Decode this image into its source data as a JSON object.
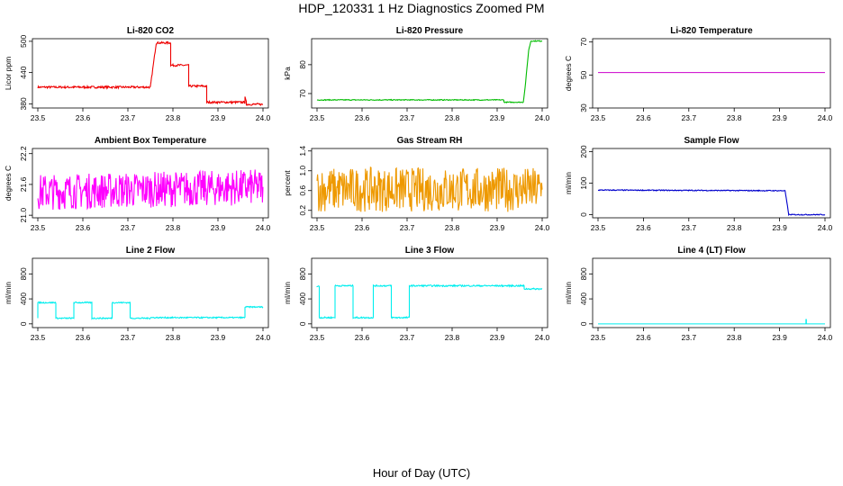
{
  "figure": {
    "title": "HDP_120331  1 Hz Diagnostics Zoomed PM",
    "xlabel": "Hour of Day (UTC)"
  },
  "chart_data": [
    {
      "type": "line",
      "title": "Li-820 CO2",
      "ylabel": "Licor ppm",
      "color": "#ee0000",
      "xlim": [
        23.5,
        24.0
      ],
      "ylim": [
        372,
        505
      ],
      "xticks": [
        "23.5",
        "23.6",
        "23.7",
        "23.8",
        "23.9",
        "24.0"
      ],
      "yticks": [
        380,
        440,
        500
      ],
      "series": [
        {
          "x": [
            23.5,
            23.75,
            23.75,
            23.763,
            23.763,
            23.795,
            23.795,
            23.835,
            23.835,
            23.875,
            23.875,
            23.96,
            23.96,
            23.963,
            23.963,
            24.0
          ],
          "y": [
            412,
            412,
            413,
            497,
            497,
            497,
            454,
            454,
            414,
            414,
            383,
            383,
            392,
            383,
            379,
            379
          ],
          "noise": 2
        }
      ]
    },
    {
      "type": "line",
      "title": "Li-820 Pressure",
      "ylabel": "kPa",
      "color": "#00bb00",
      "xlim": [
        23.5,
        24.0
      ],
      "ylim": [
        65,
        89
      ],
      "xticks": [
        "23.5",
        "23.6",
        "23.7",
        "23.8",
        "23.9",
        "24.0"
      ],
      "yticks": [
        70,
        80
      ],
      "series": [
        {
          "x": [
            23.5,
            23.915,
            23.915,
            23.958,
            23.962,
            23.97,
            23.975,
            23.99,
            24.0
          ],
          "y": [
            67.8,
            67.8,
            67,
            67,
            72,
            85,
            88.2,
            88.2,
            88.2
          ],
          "noise": 0.15
        }
      ]
    },
    {
      "type": "line",
      "title": "Li-820 Temperature",
      "ylabel": "degrees C",
      "color": "#cc00cc",
      "xlim": [
        23.5,
        24.0
      ],
      "ylim": [
        30,
        72
      ],
      "xticks": [
        "23.5",
        "23.6",
        "23.7",
        "23.8",
        "23.9",
        "24.0"
      ],
      "yticks": [
        30,
        50,
        70
      ],
      "series": [
        {
          "x": [
            23.5,
            24.0
          ],
          "y": [
            51.5,
            51.5
          ],
          "noise": 0
        }
      ]
    },
    {
      "type": "line",
      "title": "Ambient Box Temperature",
      "ylabel": "degrees C",
      "color": "#ff00ff",
      "xlim": [
        23.5,
        24.0
      ],
      "ylim": [
        20.95,
        22.3
      ],
      "xticks": [
        "23.5",
        "23.6",
        "23.7",
        "23.8",
        "23.9",
        "24.0"
      ],
      "yticks": [
        "21.0",
        "21.6",
        "22.2"
      ],
      "series": [
        {
          "x": [
            23.5,
            24.0
          ],
          "y": [
            21.45,
            21.55
          ],
          "noise": 0.35
        }
      ]
    },
    {
      "type": "line",
      "title": "Gas Stream RH",
      "ylabel": "percent",
      "color": "#ee9900",
      "xlim": [
        23.5,
        24.0
      ],
      "ylim": [
        0.05,
        1.45
      ],
      "xticks": [
        "23.5",
        "23.6",
        "23.7",
        "23.8",
        "23.9",
        "24.0"
      ],
      "yticks": [
        "0.2",
        "0.6",
        "1.0",
        "1.4"
      ],
      "series": [
        {
          "x": [
            23.5,
            24.0
          ],
          "y": [
            0.62,
            0.62
          ],
          "noise": 0.45
        }
      ]
    },
    {
      "type": "line",
      "title": "Sample Flow",
      "ylabel": "ml/min",
      "color": "#0000cc",
      "xlim": [
        23.5,
        24.0
      ],
      "ylim": [
        -10,
        210
      ],
      "xticks": [
        "23.5",
        "23.6",
        "23.7",
        "23.8",
        "23.9",
        "24.0"
      ],
      "yticks": [
        0,
        100,
        200
      ],
      "series": [
        {
          "x": [
            23.5,
            23.912,
            23.912,
            23.92,
            23.92,
            24.0
          ],
          "y": [
            78,
            76,
            76,
            2,
            0,
            0
          ],
          "noise": 1.5
        }
      ]
    },
    {
      "type": "line",
      "title": "Line 2 Flow",
      "ylabel": "ml/min",
      "color": "#00eeee",
      "xlim": [
        23.5,
        24.0
      ],
      "ylim": [
        -60,
        1050
      ],
      "xticks": [
        "23.5",
        "23.6",
        "23.7",
        "23.8",
        "23.9",
        "24.0"
      ],
      "yticks": [
        0,
        400,
        800
      ],
      "series": [
        {
          "x": [
            23.5,
            23.5,
            23.54,
            23.54,
            23.58,
            23.58,
            23.62,
            23.62,
            23.665,
            23.665,
            23.705,
            23.705,
            23.75,
            23.75,
            23.96,
            23.96,
            24.0
          ],
          "y": [
            100,
            340,
            340,
            90,
            90,
            340,
            340,
            90,
            90,
            340,
            340,
            90,
            90,
            100,
            100,
            270,
            270
          ],
          "noise": 10
        }
      ]
    },
    {
      "type": "line",
      "title": "Line 3 Flow",
      "ylabel": "ml/min",
      "color": "#00eeee",
      "xlim": [
        23.5,
        24.0
      ],
      "ylim": [
        -60,
        1050
      ],
      "xticks": [
        "23.5",
        "23.6",
        "23.7",
        "23.8",
        "23.9",
        "24.0"
      ],
      "yticks": [
        0,
        400,
        800
      ],
      "series": [
        {
          "x": [
            23.5,
            23.5,
            23.505,
            23.505,
            23.54,
            23.54,
            23.58,
            23.58,
            23.625,
            23.625,
            23.665,
            23.665,
            23.705,
            23.705,
            23.96,
            23.96,
            24.0
          ],
          "y": [
            600,
            600,
            600,
            100,
            100,
            610,
            610,
            100,
            100,
            610,
            610,
            100,
            100,
            610,
            610,
            560,
            560
          ],
          "noise": 12
        }
      ]
    },
    {
      "type": "line",
      "title": "Line 4 (LT) Flow",
      "ylabel": "ml/min",
      "color": "#00eeee",
      "xlim": [
        23.5,
        24.0
      ],
      "ylim": [
        -60,
        1050
      ],
      "xticks": [
        "23.5",
        "23.6",
        "23.7",
        "23.8",
        "23.9",
        "24.0"
      ],
      "yticks": [
        0,
        400,
        800
      ],
      "series": [
        {
          "x": [
            23.5,
            23.958,
            23.958,
            23.959,
            23.959,
            24.0
          ],
          "y": [
            0,
            0,
            70,
            70,
            0,
            0
          ],
          "noise": 0
        }
      ]
    }
  ]
}
